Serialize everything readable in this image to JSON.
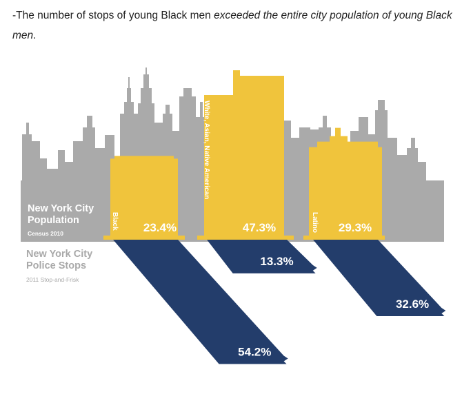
{
  "caption": {
    "plain": "-The number of stops of young Black men ",
    "italic": "exceeded the entire city population of young Black men",
    "end": "."
  },
  "labels": {
    "population_title_1": "New York City",
    "population_title_2": "Population",
    "population_sub": "Census 2010",
    "stops_title_1": "New York City",
    "stops_title_2": "Police Stops",
    "stops_sub": "2011 Stop-and-Frisk"
  },
  "colors": {
    "skyline": "#aaaaaa",
    "population": "#f0c43c",
    "stops": "#233d6b",
    "background": "#ffffff"
  },
  "chart_data": {
    "type": "bar",
    "categories": [
      "Black",
      "White, Asian, Native American",
      "Latino"
    ],
    "series": [
      {
        "name": "New York City Population",
        "values": [
          23.4,
          47.3,
          29.3
        ],
        "display": [
          "23.4%",
          "47.3%",
          "29.3%"
        ]
      },
      {
        "name": "New York City Police Stops",
        "values": [
          54.2,
          13.3,
          32.6
        ],
        "display": [
          "54.2%",
          "13.3%",
          "32.6%"
        ]
      }
    ],
    "unit": "%"
  }
}
